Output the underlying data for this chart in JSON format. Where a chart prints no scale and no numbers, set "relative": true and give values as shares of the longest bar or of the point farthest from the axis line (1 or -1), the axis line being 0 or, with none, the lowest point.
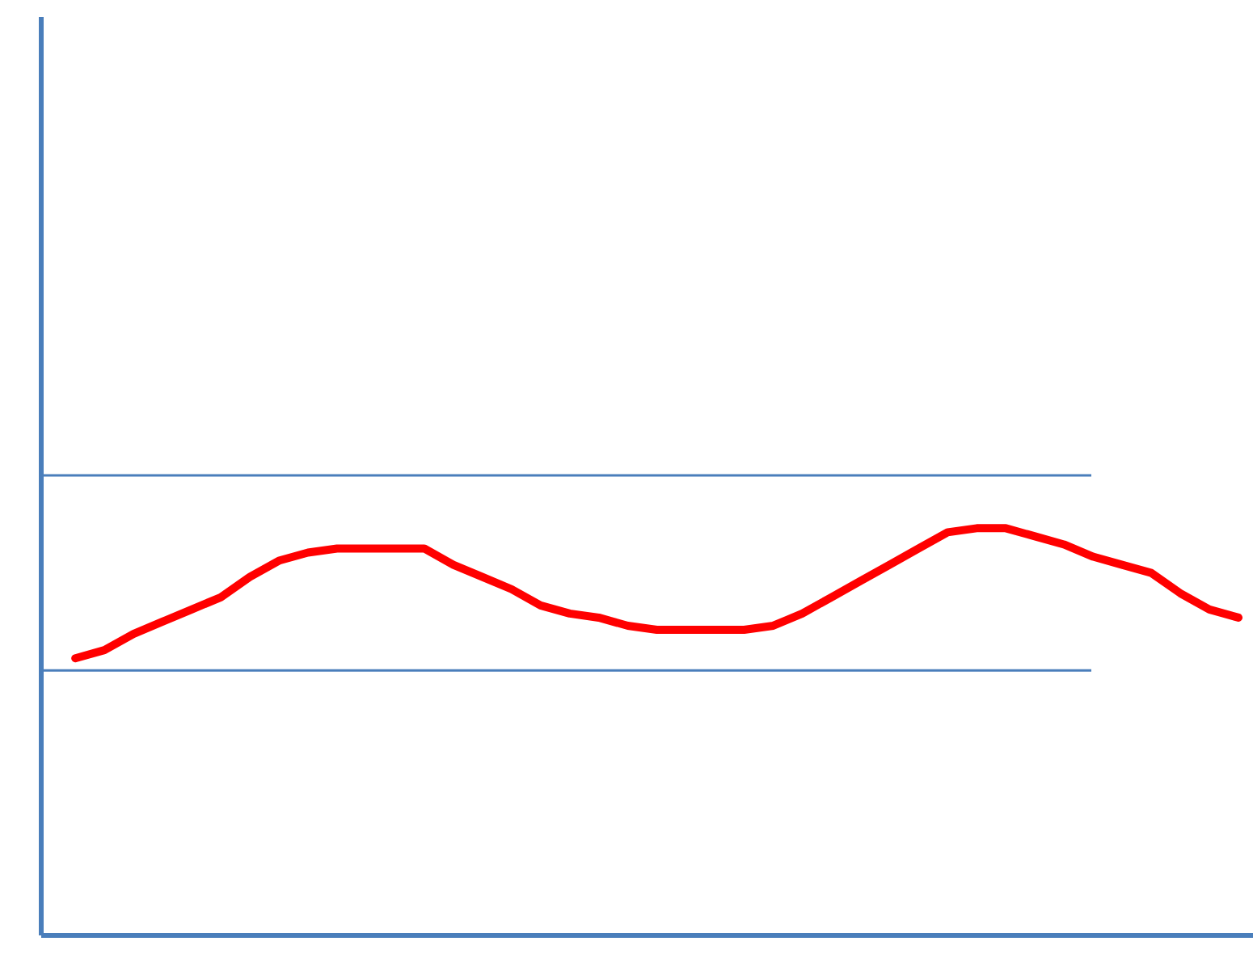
{
  "chart_data": {
    "type": "line",
    "relative": true,
    "grid": false,
    "marker": "none",
    "line_style": "solid",
    "categories": [
      null,
      null,
      null,
      null,
      null,
      null,
      null,
      null,
      null,
      null,
      null,
      null,
      null,
      null,
      null,
      null,
      null,
      null,
      null,
      null,
      null,
      null,
      null,
      null,
      null,
      null,
      null,
      null,
      null,
      null,
      null,
      null,
      null,
      null,
      null,
      null,
      null,
      null,
      null,
      null,
      null
    ],
    "series": [
      {
        "color": "#ff0000",
        "values": [
          0.68,
          0.7,
          0.74,
          0.77,
          0.8,
          0.83,
          0.88,
          0.92,
          0.94,
          0.95,
          0.95,
          0.95,
          0.95,
          0.91,
          0.88,
          0.85,
          0.81,
          0.79,
          0.78,
          0.76,
          0.75,
          0.75,
          0.75,
          0.75,
          0.76,
          0.79,
          0.83,
          0.87,
          0.91,
          0.95,
          0.99,
          1.0,
          1.0,
          0.98,
          0.96,
          0.93,
          0.91,
          0.89,
          0.84,
          0.8,
          0.78
        ]
      }
    ],
    "ref_lines": [
      {
        "axis": "y",
        "value": 1.13,
        "color": "#4a7ebb",
        "line_style": "solid"
      },
      {
        "axis": "y",
        "value": 0.65,
        "color": "#4a7ebb",
        "line_style": "solid"
      }
    ]
  }
}
